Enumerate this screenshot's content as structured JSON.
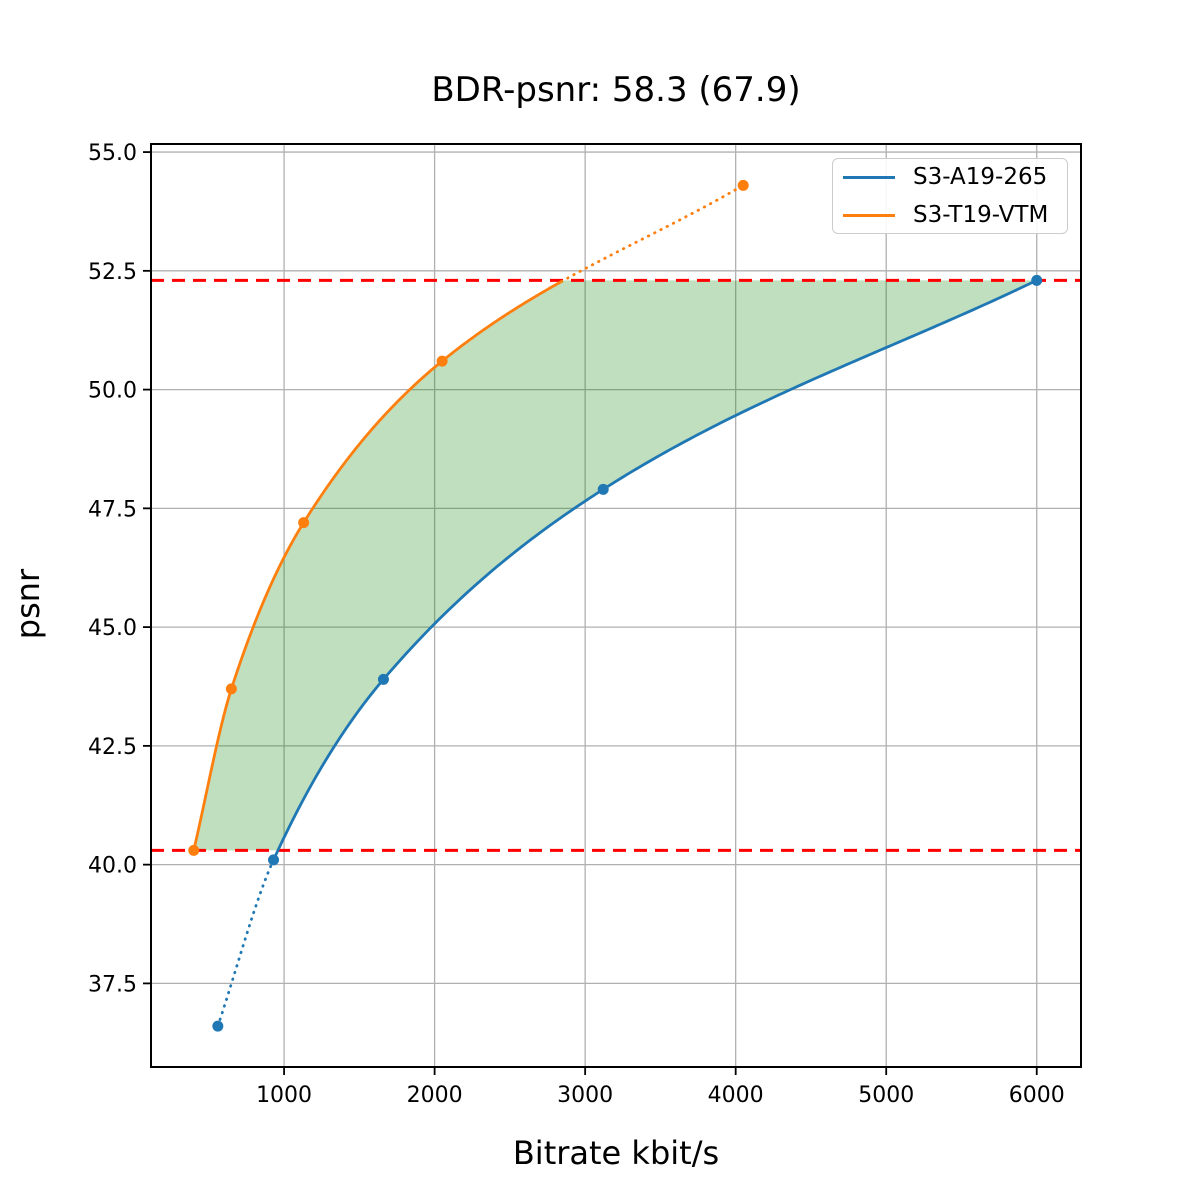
{
  "chart_data": {
    "type": "line",
    "title": "BDR-psnr: 58.3 (67.9)",
    "xlabel": "Bitrate kbit/s",
    "ylabel": "psnr",
    "xlim": [
      116,
      6294
    ],
    "ylim": [
      35.74,
      55.17
    ],
    "grid": true,
    "grid_color": "#b0b0b0",
    "background_color": "#ffffff",
    "x_ticks": {
      "values": [
        1000,
        2000,
        3000,
        4000,
        5000,
        6000
      ],
      "labels": [
        "1000",
        "2000",
        "3000",
        "4000",
        "5000",
        "6000"
      ]
    },
    "y_ticks": {
      "values": [
        37.5,
        40.0,
        42.5,
        45.0,
        47.5,
        50.0,
        52.5,
        55.0
      ],
      "labels": [
        "37.5",
        "40.0",
        "42.5",
        "45.0",
        "47.5",
        "50.0",
        "52.5",
        "55.0"
      ]
    },
    "legend_position": "upper right",
    "series": [
      {
        "name": "S3-A19-265",
        "color": "#1f77b4",
        "x": [
          560,
          930,
          1660,
          3120,
          6000
        ],
        "y": [
          36.6,
          40.1,
          43.9,
          47.9,
          52.3
        ],
        "solid_x_range": [
          930,
          6000
        ],
        "dotted_x_ranges": [
          [
            560,
            930
          ]
        ],
        "marker": "circle"
      },
      {
        "name": "S3-T19-VTM",
        "color": "#ff7f0e",
        "x": [
          400,
          650,
          1130,
          2050,
          4050
        ],
        "y": [
          40.3,
          43.7,
          47.2,
          50.6,
          54.3
        ],
        "solid_x_range": [
          400,
          2843
        ],
        "dotted_x_ranges": [
          [
            2843,
            4050
          ]
        ],
        "marker": "circle"
      }
    ],
    "hlines": [
      {
        "y": 40.3,
        "color": "#ff0000",
        "style": "dashed"
      },
      {
        "y": 52.3,
        "color": "#ff0000",
        "style": "dashed"
      }
    ],
    "shaded_band": {
      "x_range": [
        400,
        6000
      ],
      "upper_series_index": 1,
      "lower_series_index": 0,
      "clip_min": 40.3,
      "clip_max": 52.3,
      "color": "rgba(0,128,0,0.25)"
    }
  }
}
